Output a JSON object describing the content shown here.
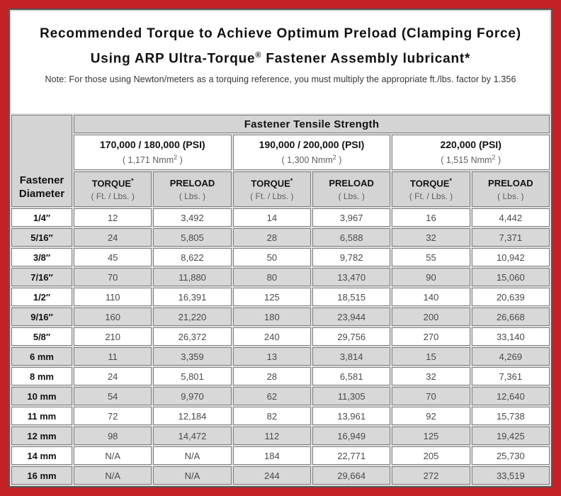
{
  "header": {
    "title_line1": "Recommended Torque to Achieve Optimum Preload (Clamping Force)",
    "title_line2_pre": "Using ARP Ultra-Torque",
    "title_line2_sup": "®",
    "title_line2_post": " Fastener Assembly lubricant*",
    "note": "Note: For those using Newton/meters as a torquing reference, you must multiply the appropriate ft./lbs. factor by 1.356"
  },
  "colors": {
    "frame_red": "#c42127",
    "inner_line": "#555555",
    "header_gray": "#d4d4d4",
    "row_stripe_gray": "#d8d8d8"
  },
  "table": {
    "corner_line1": "Fastener",
    "corner_line2": "Diameter",
    "tensile_header": "Fastener Tensile Strength",
    "psi_groups": [
      {
        "psi": "170,000 / 180,000 (PSI)",
        "nmm_pre": "( 1,171 Nmm",
        "nmm_sup": "2",
        "nmm_post": " )"
      },
      {
        "psi": "190,000 / 200,000 (PSI)",
        "nmm_pre": "( 1,300 Nmm",
        "nmm_sup": "2",
        "nmm_post": " )"
      },
      {
        "psi": "220,000 (PSI)",
        "nmm_pre": "( 1,515 Nmm",
        "nmm_sup": "2",
        "nmm_post": " )"
      }
    ],
    "sub_headers": {
      "torque_label": "TORQUE",
      "torque_sup": "*",
      "torque_unit": "( Ft. / Lbs. )",
      "preload_label": "PRELOAD",
      "preload_unit": "( Lbs. )"
    },
    "rows": [
      {
        "diameter": "1/4″",
        "values": [
          "12",
          "3,492",
          "14",
          "3,967",
          "16",
          "4,442"
        ]
      },
      {
        "diameter": "5/16″",
        "values": [
          "24",
          "5,805",
          "28",
          "6,588",
          "32",
          "7,371"
        ]
      },
      {
        "diameter": "3/8″",
        "values": [
          "45",
          "8,622",
          "50",
          "9,782",
          "55",
          "10,942"
        ]
      },
      {
        "diameter": "7/16″",
        "values": [
          "70",
          "11,880",
          "80",
          "13,470",
          "90",
          "15,060"
        ]
      },
      {
        "diameter": "1/2″",
        "values": [
          "110",
          "16,391",
          "125",
          "18,515",
          "140",
          "20,639"
        ]
      },
      {
        "diameter": "9/16″",
        "values": [
          "160",
          "21,220",
          "180",
          "23,944",
          "200",
          "26,668"
        ]
      },
      {
        "diameter": "5/8″",
        "values": [
          "210",
          "26,372",
          "240",
          "29,756",
          "270",
          "33,140"
        ]
      },
      {
        "diameter": "6 mm",
        "values": [
          "11",
          "3,359",
          "13",
          "3,814",
          "15",
          "4,269"
        ]
      },
      {
        "diameter": "8 mm",
        "values": [
          "24",
          "5,801",
          "28",
          "6,581",
          "32",
          "7,361"
        ]
      },
      {
        "diameter": "10 mm",
        "values": [
          "54",
          "9,970",
          "62",
          "11,305",
          "70",
          "12,640"
        ]
      },
      {
        "diameter": "11 mm",
        "values": [
          "72",
          "12,184",
          "82",
          "13,961",
          "92",
          "15,738"
        ]
      },
      {
        "diameter": "12 mm",
        "values": [
          "98",
          "14,472",
          "112",
          "16,949",
          "125",
          "19,425"
        ]
      },
      {
        "diameter": "14 mm",
        "values": [
          "N/A",
          "N/A",
          "184",
          "22,771",
          "205",
          "25,730"
        ]
      },
      {
        "diameter": "16 mm",
        "values": [
          "N/A",
          "N/A",
          "244",
          "29,664",
          "272",
          "33,519"
        ]
      }
    ]
  }
}
